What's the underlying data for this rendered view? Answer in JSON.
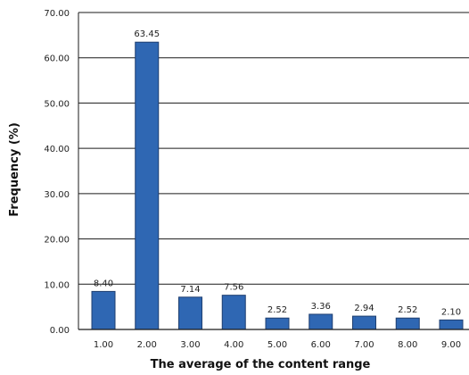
{
  "chart_data": {
    "type": "bar",
    "categories": [
      "1.00",
      "2.00",
      "3.00",
      "4.00",
      "5.00",
      "6.00",
      "7.00",
      "8.00",
      "9.00"
    ],
    "values": [
      8.4,
      63.45,
      7.14,
      7.56,
      2.52,
      3.36,
      2.94,
      2.52,
      2.1
    ],
    "value_labels": [
      "8.40",
      "63.45",
      "7.14",
      "7.56",
      "2.52",
      "3.36",
      "2.94",
      "2.52",
      "2.10"
    ],
    "xlabel": "The average of the content range",
    "ylabel": "Frequency (%)",
    "ylim": [
      0,
      70
    ],
    "yticks": [
      "0.00",
      "10.00",
      "20.00",
      "30.00",
      "40.00",
      "50.00",
      "60.00",
      "70.00"
    ],
    "grid": true,
    "bar_color": "#2f67b3",
    "bar_edge_color": "#1f3f70"
  }
}
